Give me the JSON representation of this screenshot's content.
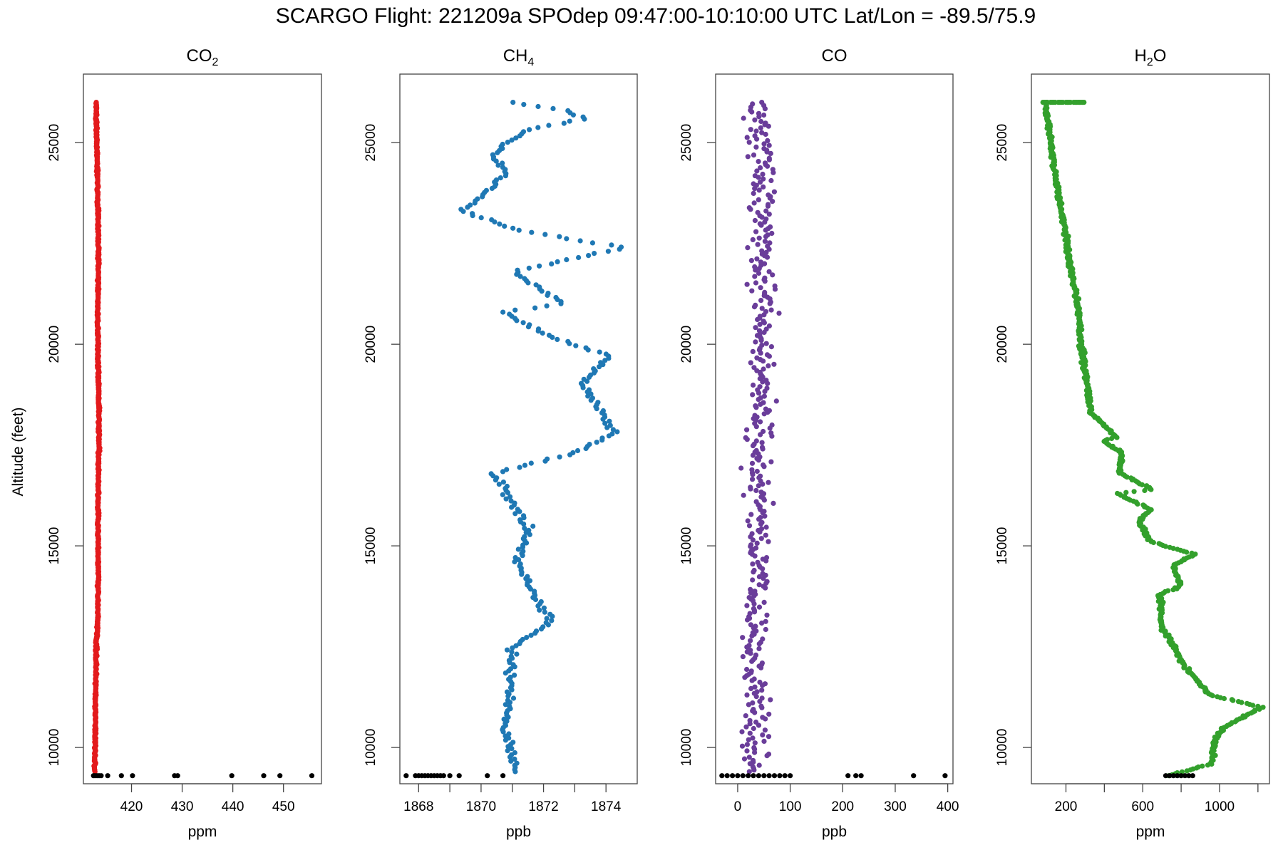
{
  "title": "SCARGO Flight: 221209a  SPOdep  09:47:00-10:10:00 UTC  Lat/Lon = -89.5/75.9",
  "ylabel": "Altitude (feet)",
  "yticks": [
    10000,
    15000,
    20000,
    25000
  ],
  "colors": {
    "co2": "#e31a1c",
    "ch4": "#1f78b4",
    "co": "#6a3d9a",
    "h2o": "#33a02c",
    "ground": "#000000"
  },
  "chart_data": [
    {
      "id": "co2",
      "type": "scatter",
      "title_base": "CO",
      "title_sub": "2",
      "xlabel": "ppm",
      "xlim": [
        410.5,
        457.5
      ],
      "ylim": [
        9100,
        26700
      ],
      "xticks": [
        420,
        430,
        440,
        450
      ],
      "xtick_labels": [
        "420",
        "430",
        "440",
        "450"
      ],
      "profile": [
        [
          412.7,
          9400
        ],
        [
          412.8,
          10000
        ],
        [
          413.0,
          12000
        ],
        [
          413.1,
          12600
        ],
        [
          413.3,
          13000
        ],
        [
          413.4,
          14000
        ],
        [
          413.4,
          16000
        ],
        [
          413.6,
          18000
        ],
        [
          413.3,
          20500
        ],
        [
          413.5,
          22000
        ],
        [
          413.3,
          24000
        ],
        [
          413.1,
          25500
        ],
        [
          413.0,
          26000
        ]
      ],
      "ground_x": [
        412.5,
        412.8,
        413.2,
        413.6,
        414.0,
        415.3,
        418.0,
        420.2,
        428.5,
        429.1,
        439.8,
        446.1,
        449.3,
        455.6
      ],
      "ground_y": 9300,
      "noise": 0.15,
      "n": 700
    },
    {
      "id": "ch4",
      "type": "scatter",
      "title_base": "CH",
      "title_sub": "4",
      "xlabel": "ppb",
      "xlim": [
        1867.4,
        1875.0
      ],
      "ylim": [
        9100,
        26700
      ],
      "xticks": [
        1868,
        1869,
        1870,
        1871,
        1872,
        1873,
        1874
      ],
      "xtick_labels": [
        "1868",
        "",
        "1870",
        "",
        "1872",
        "",
        "1874"
      ],
      "profile": [
        [
          1871.1,
          9400
        ],
        [
          1870.8,
          10500
        ],
        [
          1871.0,
          12500
        ],
        [
          1872.2,
          13100
        ],
        [
          1871.2,
          14500
        ],
        [
          1871.5,
          15500
        ],
        [
          1870.4,
          16800
        ],
        [
          1873.0,
          17300
        ],
        [
          1874.3,
          17800
        ],
        [
          1873.2,
          19000
        ],
        [
          1874.1,
          19700
        ],
        [
          1872.2,
          20200
        ],
        [
          1870.7,
          20800
        ],
        [
          1872.7,
          21000
        ],
        [
          1871.0,
          21800
        ],
        [
          1874.6,
          22400
        ],
        [
          1871.3,
          22800
        ],
        [
          1869.4,
          23300
        ],
        [
          1870.8,
          24200
        ],
        [
          1870.4,
          24700
        ],
        [
          1871.4,
          25300
        ],
        [
          1873.4,
          25600
        ],
        [
          1872.8,
          25800
        ],
        [
          1871.0,
          26000
        ]
      ],
      "ground_x": [
        1867.6,
        1867.9,
        1868.0,
        1868.1,
        1868.2,
        1868.3,
        1868.4,
        1868.5,
        1868.6,
        1868.7,
        1868.8,
        1869.0,
        1869.3,
        1870.2,
        1870.7
      ],
      "ground_y": 9300,
      "noise": 0.12,
      "n": 320
    },
    {
      "id": "co",
      "type": "scatter",
      "title_base": "CO",
      "title_sub": "",
      "xlabel": "ppb",
      "xlim": [
        -42,
        410
      ],
      "ylim": [
        9100,
        26700
      ],
      "xticks": [
        0,
        100,
        200,
        300,
        400
      ],
      "xtick_labels": [
        "0",
        "100",
        "200",
        "300",
        "400"
      ],
      "profile": [
        [
          35,
          9400
        ],
        [
          35,
          12000
        ],
        [
          40,
          16000
        ],
        [
          45,
          20000
        ],
        [
          45,
          24000
        ],
        [
          40,
          26000
        ]
      ],
      "ground_x": [
        -30,
        -20,
        -10,
        0,
        10,
        20,
        30,
        40,
        50,
        60,
        70,
        80,
        90,
        100,
        210,
        225,
        235,
        335,
        395
      ],
      "ground_y": 9300,
      "noise": 22,
      "n": 420
    },
    {
      "id": "h2o",
      "type": "scatter",
      "title_base": "H",
      "title_sub": "2",
      "title_suffix": "O",
      "xlabel": "ppm",
      "xlim": [
        20,
        1260
      ],
      "ylim": [
        9100,
        26700
      ],
      "xticks": [
        200,
        400,
        600,
        800,
        1000,
        1200
      ],
      "xtick_labels": [
        "200",
        "",
        "600",
        "",
        "1000",
        ""
      ],
      "profile": [
        [
          740,
          9300
        ],
        [
          960,
          9600
        ],
        [
          970,
          10100
        ],
        [
          1020,
          10500
        ],
        [
          1220,
          11000
        ],
        [
          950,
          11300
        ],
        [
          820,
          12000
        ],
        [
          700,
          13000
        ],
        [
          690,
          13800
        ],
        [
          800,
          14000
        ],
        [
          760,
          14500
        ],
        [
          870,
          14800
        ],
        [
          640,
          15100
        ],
        [
          580,
          15600
        ],
        [
          640,
          15900
        ],
        [
          470,
          16300
        ],
        [
          650,
          16400
        ],
        [
          480,
          16800
        ],
        [
          490,
          17300
        ],
        [
          400,
          17600
        ],
        [
          460,
          17700
        ],
        [
          330,
          18300
        ],
        [
          310,
          19000
        ],
        [
          280,
          20000
        ],
        [
          260,
          21000
        ],
        [
          220,
          22000
        ],
        [
          190,
          23000
        ],
        [
          150,
          24000
        ],
        [
          120,
          25000
        ],
        [
          95,
          26000
        ]
      ],
      "ground_x": [
        720,
        740,
        760,
        780,
        800,
        820,
        840,
        860
      ],
      "ground_y": 9300,
      "top_x": [
        80,
        120,
        160,
        200,
        240,
        270
      ],
      "top_y": 26000,
      "noise": 10,
      "n": 700
    }
  ]
}
